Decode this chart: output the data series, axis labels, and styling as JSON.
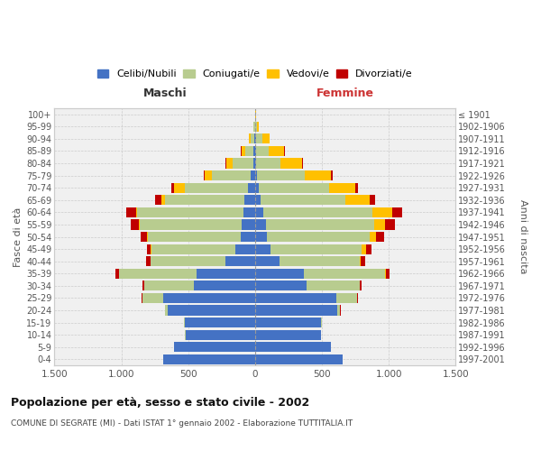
{
  "age_groups": [
    "0-4",
    "5-9",
    "10-14",
    "15-19",
    "20-24",
    "25-29",
    "30-34",
    "35-39",
    "40-44",
    "45-49",
    "50-54",
    "55-59",
    "60-64",
    "65-69",
    "70-74",
    "75-79",
    "80-84",
    "85-89",
    "90-94",
    "95-99",
    "100+"
  ],
  "birth_years": [
    "1997-2001",
    "1992-1996",
    "1987-1991",
    "1982-1986",
    "1977-1981",
    "1972-1976",
    "1967-1971",
    "1962-1966",
    "1957-1961",
    "1952-1956",
    "1947-1951",
    "1942-1946",
    "1937-1941",
    "1932-1936",
    "1927-1931",
    "1922-1926",
    "1917-1921",
    "1912-1916",
    "1907-1911",
    "1902-1906",
    "≤ 1901"
  ],
  "male_celibe": [
    690,
    605,
    520,
    525,
    650,
    690,
    460,
    440,
    220,
    145,
    110,
    100,
    90,
    80,
    55,
    30,
    15,
    10,
    5,
    2,
    0
  ],
  "male_coniugato": [
    0,
    0,
    2,
    5,
    22,
    155,
    370,
    580,
    560,
    630,
    690,
    760,
    790,
    590,
    470,
    290,
    150,
    65,
    28,
    8,
    2
  ],
  "male_vedovo": [
    0,
    0,
    0,
    0,
    0,
    0,
    0,
    0,
    0,
    4,
    5,
    6,
    10,
    32,
    80,
    55,
    50,
    28,
    12,
    3,
    0
  ],
  "male_divorziato": [
    0,
    0,
    0,
    0,
    2,
    5,
    10,
    22,
    32,
    32,
    50,
    60,
    75,
    45,
    22,
    10,
    8,
    2,
    0,
    0,
    0
  ],
  "female_nubile": [
    655,
    565,
    490,
    495,
    615,
    605,
    385,
    365,
    185,
    112,
    90,
    80,
    60,
    38,
    28,
    15,
    10,
    8,
    5,
    2,
    0
  ],
  "female_coniugata": [
    0,
    0,
    2,
    5,
    18,
    155,
    395,
    605,
    595,
    685,
    765,
    810,
    820,
    640,
    525,
    355,
    178,
    95,
    48,
    12,
    3
  ],
  "female_vedova": [
    0,
    0,
    0,
    0,
    3,
    4,
    5,
    5,
    12,
    30,
    50,
    80,
    148,
    178,
    195,
    198,
    165,
    115,
    55,
    12,
    2
  ],
  "female_divorziata": [
    0,
    0,
    0,
    0,
    4,
    6,
    12,
    32,
    32,
    42,
    62,
    72,
    72,
    42,
    22,
    10,
    5,
    2,
    0,
    0,
    0
  ],
  "color_celibe": "#4472c4",
  "color_coniugato": "#b8cc8f",
  "color_vedovo": "#ffc000",
  "color_divorziato": "#c00000",
  "legend_labels": [
    "Celibi/Nubili",
    "Coniugati/e",
    "Vedovi/e",
    "Divorziati/e"
  ],
  "title": "Popolazione per età, sesso e stato civile - 2002",
  "subtitle": "COMUNE DI SEGRATE (MI) - Dati ISTAT 1° gennaio 2002 - Elaborazione TUTTITALIA.IT",
  "label_maschi": "Maschi",
  "label_femmine": "Femmine",
  "ylabel_left": "Fasce di età",
  "ylabel_right": "Anni di nascita",
  "xlim": 1500,
  "bg_chart": "#f0f0f0",
  "bg_fig": "#ffffff",
  "grid_color": "#cccccc"
}
